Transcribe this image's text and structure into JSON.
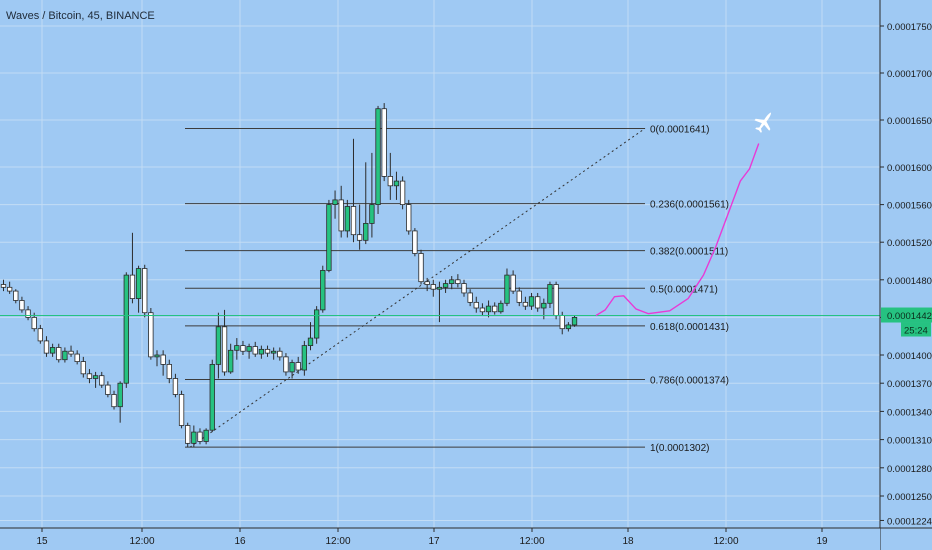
{
  "chart_data": {
    "type": "candlestick",
    "title": "Waves / Bitcoin, 45, BINANCE",
    "x_labels": [
      "15",
      "12:00",
      "16",
      "12:00",
      "17",
      "12:00",
      "18",
      "12:00",
      "19"
    ],
    "y_ticks": [
      "0.0001750",
      "0.0001700",
      "0.0001650",
      "0.0001600",
      "0.0001560",
      "0.0001520",
      "0.0001480",
      "0.0001440",
      "0.0001400",
      "0.0001370",
      "0.0001340",
      "0.0001310",
      "0.0001280",
      "0.0001250",
      "0.0001224"
    ],
    "current_price": "0.0001442",
    "countdown": "25:24",
    "fib_levels": [
      {
        "ratio": "0",
        "price": "0.0001641"
      },
      {
        "ratio": "0.236",
        "price": "0.0001561"
      },
      {
        "ratio": "0.382",
        "price": "0.0001511"
      },
      {
        "ratio": "0.5",
        "price": "0.0001471"
      },
      {
        "ratio": "0.618",
        "price": "0.0001431"
      },
      {
        "ratio": "0.786",
        "price": "0.0001374"
      },
      {
        "ratio": "1",
        "price": "0.0001302"
      }
    ],
    "candles": [
      {
        "o": 0.0001475,
        "h": 0.000148,
        "l": 0.0001468,
        "c": 0.0001472
      },
      {
        "o": 0.0001472,
        "h": 0.0001478,
        "l": 0.0001465,
        "c": 0.0001468
      },
      {
        "o": 0.0001468,
        "h": 0.000147,
        "l": 0.0001455,
        "c": 0.0001458
      },
      {
        "o": 0.0001458,
        "h": 0.0001462,
        "l": 0.0001445,
        "c": 0.0001448
      },
      {
        "o": 0.0001448,
        "h": 0.0001452,
        "l": 0.0001437,
        "c": 0.000144
      },
      {
        "o": 0.000144,
        "h": 0.0001445,
        "l": 0.0001425,
        "c": 0.0001428
      },
      {
        "o": 0.0001428,
        "h": 0.0001432,
        "l": 0.0001412,
        "c": 0.0001415
      },
      {
        "o": 0.0001415,
        "h": 0.000142,
        "l": 0.0001398,
        "c": 0.0001402
      },
      {
        "o": 0.0001402,
        "h": 0.0001412,
        "l": 0.0001398,
        "c": 0.0001408
      },
      {
        "o": 0.0001408,
        "h": 0.0001412,
        "l": 0.0001392,
        "c": 0.0001395
      },
      {
        "o": 0.0001395,
        "h": 0.0001408,
        "l": 0.0001392,
        "c": 0.0001404
      },
      {
        "o": 0.0001404,
        "h": 0.000141,
        "l": 0.0001398,
        "c": 0.0001401
      },
      {
        "o": 0.0001401,
        "h": 0.0001405,
        "l": 0.000139,
        "c": 0.0001393
      },
      {
        "o": 0.0001393,
        "h": 0.0001398,
        "l": 0.0001376,
        "c": 0.000138
      },
      {
        "o": 0.000138,
        "h": 0.0001385,
        "l": 0.000137,
        "c": 0.0001375
      },
      {
        "o": 0.0001375,
        "h": 0.0001382,
        "l": 0.0001365,
        "c": 0.0001378
      },
      {
        "o": 0.0001378,
        "h": 0.0001382,
        "l": 0.0001365,
        "c": 0.0001368
      },
      {
        "o": 0.0001368,
        "h": 0.0001372,
        "l": 0.0001355,
        "c": 0.0001358
      },
      {
        "o": 0.0001358,
        "h": 0.0001362,
        "l": 0.0001342,
        "c": 0.0001345
      },
      {
        "o": 0.0001345,
        "h": 0.0001372,
        "l": 0.0001328,
        "c": 0.000137
      },
      {
        "o": 0.000137,
        "h": 0.0001488,
        "l": 0.0001365,
        "c": 0.0001485
      },
      {
        "o": 0.0001485,
        "h": 0.000153,
        "l": 0.0001455,
        "c": 0.000146
      },
      {
        "o": 0.000146,
        "h": 0.0001495,
        "l": 0.0001445,
        "c": 0.0001492
      },
      {
        "o": 0.0001492,
        "h": 0.0001496,
        "l": 0.000144,
        "c": 0.0001445
      },
      {
        "o": 0.0001445,
        "h": 0.000145,
        "l": 0.0001395,
        "c": 0.0001398
      },
      {
        "o": 0.0001398,
        "h": 0.0001405,
        "l": 0.0001388,
        "c": 0.00014
      },
      {
        "o": 0.00014,
        "h": 0.0001405,
        "l": 0.0001378,
        "c": 0.000139
      },
      {
        "o": 0.000139,
        "h": 0.0001395,
        "l": 0.000137,
        "c": 0.0001375
      },
      {
        "o": 0.0001375,
        "h": 0.000138,
        "l": 0.0001355,
        "c": 0.0001358
      },
      {
        "o": 0.0001358,
        "h": 0.0001362,
        "l": 0.0001322,
        "c": 0.0001325
      },
      {
        "o": 0.0001325,
        "h": 0.0001328,
        "l": 0.0001302,
        "c": 0.0001306
      },
      {
        "o": 0.0001306,
        "h": 0.0001325,
        "l": 0.0001302,
        "c": 0.0001318
      },
      {
        "o": 0.0001318,
        "h": 0.0001322,
        "l": 0.0001305,
        "c": 0.0001308
      },
      {
        "o": 0.0001308,
        "h": 0.0001322,
        "l": 0.0001305,
        "c": 0.000132
      },
      {
        "o": 0.000132,
        "h": 0.0001395,
        "l": 0.0001318,
        "c": 0.000139
      },
      {
        "o": 0.000139,
        "h": 0.0001445,
        "l": 0.0001375,
        "c": 0.000143
      },
      {
        "o": 0.000143,
        "h": 0.0001448,
        "l": 0.0001378,
        "c": 0.0001382
      },
      {
        "o": 0.0001382,
        "h": 0.0001412,
        "l": 0.000138,
        "c": 0.0001405
      },
      {
        "o": 0.0001405,
        "h": 0.0001418,
        "l": 0.0001395,
        "c": 0.000141
      },
      {
        "o": 0.000141,
        "h": 0.0001415,
        "l": 0.00014,
        "c": 0.0001404
      },
      {
        "o": 0.0001404,
        "h": 0.0001412,
        "l": 0.0001396,
        "c": 0.0001409
      },
      {
        "o": 0.0001409,
        "h": 0.0001414,
        "l": 0.0001398,
        "c": 0.0001401
      },
      {
        "o": 0.0001401,
        "h": 0.000141,
        "l": 0.0001396,
        "c": 0.0001406
      },
      {
        "o": 0.0001406,
        "h": 0.000141,
        "l": 0.0001398,
        "c": 0.0001402
      },
      {
        "o": 0.0001402,
        "h": 0.0001408,
        "l": 0.0001395,
        "c": 0.0001404
      },
      {
        "o": 0.0001404,
        "h": 0.0001408,
        "l": 0.0001394,
        "c": 0.0001398
      },
      {
        "o": 0.0001398,
        "h": 0.0001402,
        "l": 0.0001378,
        "c": 0.0001382
      },
      {
        "o": 0.0001382,
        "h": 0.0001395,
        "l": 0.0001375,
        "c": 0.0001392
      },
      {
        "o": 0.0001392,
        "h": 0.0001398,
        "l": 0.000138,
        "c": 0.0001384
      },
      {
        "o": 0.0001384,
        "h": 0.0001415,
        "l": 0.0001378,
        "c": 0.000141
      },
      {
        "o": 0.000141,
        "h": 0.0001435,
        "l": 0.0001405,
        "c": 0.0001418
      },
      {
        "o": 0.0001418,
        "h": 0.0001452,
        "l": 0.0001412,
        "c": 0.0001448
      },
      {
        "o": 0.0001448,
        "h": 0.0001495,
        "l": 0.0001445,
        "c": 0.000149
      },
      {
        "o": 0.000149,
        "h": 0.0001565,
        "l": 0.0001488,
        "c": 0.000156
      },
      {
        "o": 0.000156,
        "h": 0.0001575,
        "l": 0.0001545,
        "c": 0.0001565
      },
      {
        "o": 0.0001565,
        "h": 0.000158,
        "l": 0.0001525,
        "c": 0.0001532
      },
      {
        "o": 0.0001532,
        "h": 0.0001565,
        "l": 0.0001525,
        "c": 0.0001558
      },
      {
        "o": 0.0001558,
        "h": 0.000163,
        "l": 0.000152,
        "c": 0.0001528
      },
      {
        "o": 0.0001528,
        "h": 0.000156,
        "l": 0.0001512,
        "c": 0.0001522
      },
      {
        "o": 0.0001522,
        "h": 0.0001605,
        "l": 0.0001518,
        "c": 0.000154
      },
      {
        "o": 0.000154,
        "h": 0.0001615,
        "l": 0.0001525,
        "c": 0.000156
      },
      {
        "o": 0.000156,
        "h": 0.0001665,
        "l": 0.000155,
        "c": 0.0001662
      },
      {
        "o": 0.0001662,
        "h": 0.0001668,
        "l": 0.0001585,
        "c": 0.000159
      },
      {
        "o": 0.000159,
        "h": 0.0001615,
        "l": 0.0001565,
        "c": 0.000158
      },
      {
        "o": 0.000158,
        "h": 0.0001595,
        "l": 0.0001565,
        "c": 0.0001585
      },
      {
        "o": 0.0001585,
        "h": 0.000159,
        "l": 0.0001555,
        "c": 0.000156
      },
      {
        "o": 0.000156,
        "h": 0.0001565,
        "l": 0.0001528,
        "c": 0.0001532
      },
      {
        "o": 0.0001532,
        "h": 0.0001535,
        "l": 0.0001505,
        "c": 0.0001508
      },
      {
        "o": 0.0001508,
        "h": 0.0001512,
        "l": 0.0001475,
        "c": 0.0001478
      },
      {
        "o": 0.0001478,
        "h": 0.0001482,
        "l": 0.0001468,
        "c": 0.0001475
      },
      {
        "o": 0.0001475,
        "h": 0.000148,
        "l": 0.0001462,
        "c": 0.000147
      },
      {
        "o": 0.000147,
        "h": 0.0001478,
        "l": 0.0001435,
        "c": 0.0001472
      },
      {
        "o": 0.0001472,
        "h": 0.000148,
        "l": 0.0001466,
        "c": 0.0001476
      },
      {
        "o": 0.0001476,
        "h": 0.0001484,
        "l": 0.000147,
        "c": 0.000148
      },
      {
        "o": 0.000148,
        "h": 0.0001486,
        "l": 0.0001472,
        "c": 0.0001476
      },
      {
        "o": 0.0001476,
        "h": 0.000148,
        "l": 0.0001462,
        "c": 0.0001466
      },
      {
        "o": 0.0001466,
        "h": 0.000147,
        "l": 0.0001452,
        "c": 0.0001456
      },
      {
        "o": 0.0001456,
        "h": 0.0001462,
        "l": 0.0001445,
        "c": 0.000145
      },
      {
        "o": 0.000145,
        "h": 0.0001455,
        "l": 0.0001442,
        "c": 0.0001446
      },
      {
        "o": 0.0001446,
        "h": 0.0001458,
        "l": 0.000144,
        "c": 0.0001452
      },
      {
        "o": 0.0001452,
        "h": 0.0001456,
        "l": 0.0001443,
        "c": 0.0001446
      },
      {
        "o": 0.0001446,
        "h": 0.0001458,
        "l": 0.0001444,
        "c": 0.0001455
      },
      {
        "o": 0.0001455,
        "h": 0.0001492,
        "l": 0.0001452,
        "c": 0.0001485
      },
      {
        "o": 0.0001485,
        "h": 0.000149,
        "l": 0.0001465,
        "c": 0.0001468
      },
      {
        "o": 0.0001468,
        "h": 0.0001472,
        "l": 0.0001452,
        "c": 0.0001456
      },
      {
        "o": 0.0001456,
        "h": 0.0001462,
        "l": 0.0001448,
        "c": 0.0001452
      },
      {
        "o": 0.0001452,
        "h": 0.0001466,
        "l": 0.0001448,
        "c": 0.0001462
      },
      {
        "o": 0.0001462,
        "h": 0.0001466,
        "l": 0.0001446,
        "c": 0.000145
      },
      {
        "o": 0.000145,
        "h": 0.000146,
        "l": 0.0001438,
        "c": 0.0001455
      },
      {
        "o": 0.0001455,
        "h": 0.0001478,
        "l": 0.000145,
        "c": 0.0001475
      },
      {
        "o": 0.0001475,
        "h": 0.0001478,
        "l": 0.0001438,
        "c": 0.0001442
      },
      {
        "o": 0.0001442,
        "h": 0.0001446,
        "l": 0.0001422,
        "c": 0.0001428
      },
      {
        "o": 0.0001428,
        "h": 0.0001435,
        "l": 0.0001425,
        "c": 0.0001432
      },
      {
        "o": 0.0001432,
        "h": 0.0001442,
        "l": 0.000143,
        "c": 0.000144
      }
    ],
    "projection_path": [
      {
        "t": 96.5,
        "p": 0.0001442
      },
      {
        "t": 98.0,
        "p": 0.0001448
      },
      {
        "t": 99.5,
        "p": 0.0001462
      },
      {
        "t": 101.0,
        "p": 0.0001463
      },
      {
        "t": 103.0,
        "p": 0.0001449
      },
      {
        "t": 105.0,
        "p": 0.0001444
      },
      {
        "t": 108.5,
        "p": 0.0001447
      },
      {
        "t": 111.5,
        "p": 0.000146
      },
      {
        "t": 114.0,
        "p": 0.0001485
      },
      {
        "t": 116.0,
        "p": 0.0001515
      },
      {
        "t": 118.0,
        "p": 0.000155
      },
      {
        "t": 120.0,
        "p": 0.0001585
      },
      {
        "t": 121.5,
        "p": 0.0001598
      },
      {
        "t": 123.0,
        "p": 0.0001625
      }
    ],
    "colors": {
      "background": "#9fc9f3",
      "grid": "#c2dcf5",
      "up_candle": "#26c281",
      "down_candle": "#ffffff",
      "wick": "#2b2b2b",
      "fib_line": "#3c3c3c",
      "projection": "#e83ad6",
      "price_tag": "#26c281"
    },
    "icons": [
      "airplane-icon"
    ]
  }
}
